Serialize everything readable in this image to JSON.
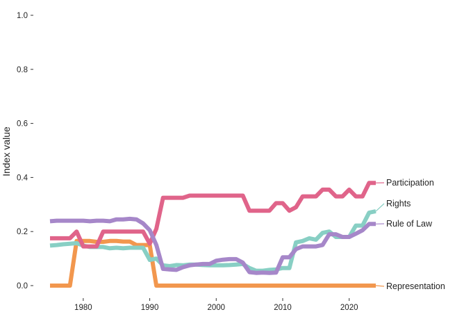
{
  "chart_data": {
    "type": "line",
    "title": "",
    "xlabel": "",
    "ylabel": "Index value",
    "xlim": [
      1975,
      2024
    ],
    "ylim": [
      0,
      1
    ],
    "x_ticks": [
      1980,
      1990,
      2000,
      2010,
      2020
    ],
    "y_ticks": [
      0,
      0.2,
      0.4,
      0.6,
      0.8,
      1.0
    ],
    "y_tick_labels": [
      "0.0",
      "0.2",
      "0.4",
      "0.6",
      "0.8",
      "1.0"
    ],
    "x_tick_labels": [
      "1980",
      "1990",
      "2000",
      "2010",
      "2020"
    ],
    "grid": false,
    "legend": "direct labels at line ends (right)",
    "x": [
      1975,
      1976,
      1977,
      1978,
      1979,
      1980,
      1981,
      1982,
      1983,
      1984,
      1985,
      1986,
      1987,
      1988,
      1989,
      1990,
      1991,
      1992,
      1993,
      1994,
      1995,
      1996,
      1997,
      1998,
      1999,
      2000,
      2001,
      2002,
      2003,
      2004,
      2005,
      2006,
      2007,
      2008,
      2009,
      2010,
      2011,
      2012,
      2013,
      2014,
      2015,
      2016,
      2017,
      2018,
      2019,
      2020,
      2021,
      2022,
      2023,
      2024
    ],
    "series": [
      {
        "name": "Participation",
        "color": "#e0648a",
        "values": [
          0.175,
          0.175,
          0.175,
          0.175,
          0.2,
          0.145,
          0.145,
          0.145,
          0.2,
          0.2,
          0.2,
          0.2,
          0.2,
          0.2,
          0.2,
          0.155,
          0.21,
          0.325,
          0.325,
          0.325,
          0.325,
          0.333,
          0.333,
          0.333,
          0.333,
          0.333,
          0.333,
          0.333,
          0.333,
          0.333,
          0.277,
          0.277,
          0.277,
          0.277,
          0.305,
          0.305,
          0.277,
          0.29,
          0.33,
          0.33,
          0.33,
          0.355,
          0.355,
          0.33,
          0.33,
          0.355,
          0.33,
          0.33,
          0.38,
          0.38
        ]
      },
      {
        "name": "Rights",
        "color": "#88cfc4",
        "values": [
          0.148,
          0.15,
          0.153,
          0.155,
          0.157,
          0.148,
          0.143,
          0.143,
          0.143,
          0.138,
          0.14,
          0.138,
          0.14,
          0.14,
          0.14,
          0.095,
          0.1,
          0.075,
          0.072,
          0.076,
          0.075,
          0.078,
          0.078,
          0.076,
          0.075,
          0.075,
          0.075,
          0.076,
          0.078,
          0.08,
          0.065,
          0.055,
          0.055,
          0.058,
          0.06,
          0.065,
          0.065,
          0.16,
          0.165,
          0.175,
          0.17,
          0.195,
          0.2,
          0.18,
          0.18,
          0.18,
          0.222,
          0.222,
          0.27,
          0.275
        ]
      },
      {
        "name": "Rule of Law",
        "color": "#a687c9",
        "values": [
          0.238,
          0.24,
          0.24,
          0.24,
          0.24,
          0.24,
          0.238,
          0.24,
          0.24,
          0.238,
          0.245,
          0.245,
          0.247,
          0.245,
          0.23,
          0.205,
          0.15,
          0.062,
          0.06,
          0.058,
          0.068,
          0.075,
          0.078,
          0.08,
          0.08,
          0.092,
          0.096,
          0.098,
          0.098,
          0.085,
          0.05,
          0.047,
          0.048,
          0.047,
          0.048,
          0.105,
          0.105,
          0.135,
          0.145,
          0.145,
          0.145,
          0.15,
          0.19,
          0.19,
          0.18,
          0.18,
          0.192,
          0.205,
          0.228,
          0.228
        ]
      },
      {
        "name": "Representation",
        "color": "#f2974e",
        "values": [
          0,
          0,
          0,
          0,
          0.165,
          0.165,
          0.165,
          0.162,
          0.162,
          0.165,
          0.165,
          0.163,
          0.163,
          0.15,
          0.15,
          0.15,
          0,
          0,
          0,
          0,
          0,
          0,
          0,
          0,
          0,
          0,
          0,
          0,
          0,
          0,
          0,
          0,
          0,
          0,
          0,
          0,
          0,
          0,
          0,
          0,
          0,
          0,
          0,
          0,
          0,
          0,
          0,
          0,
          0,
          0
        ]
      }
    ]
  }
}
